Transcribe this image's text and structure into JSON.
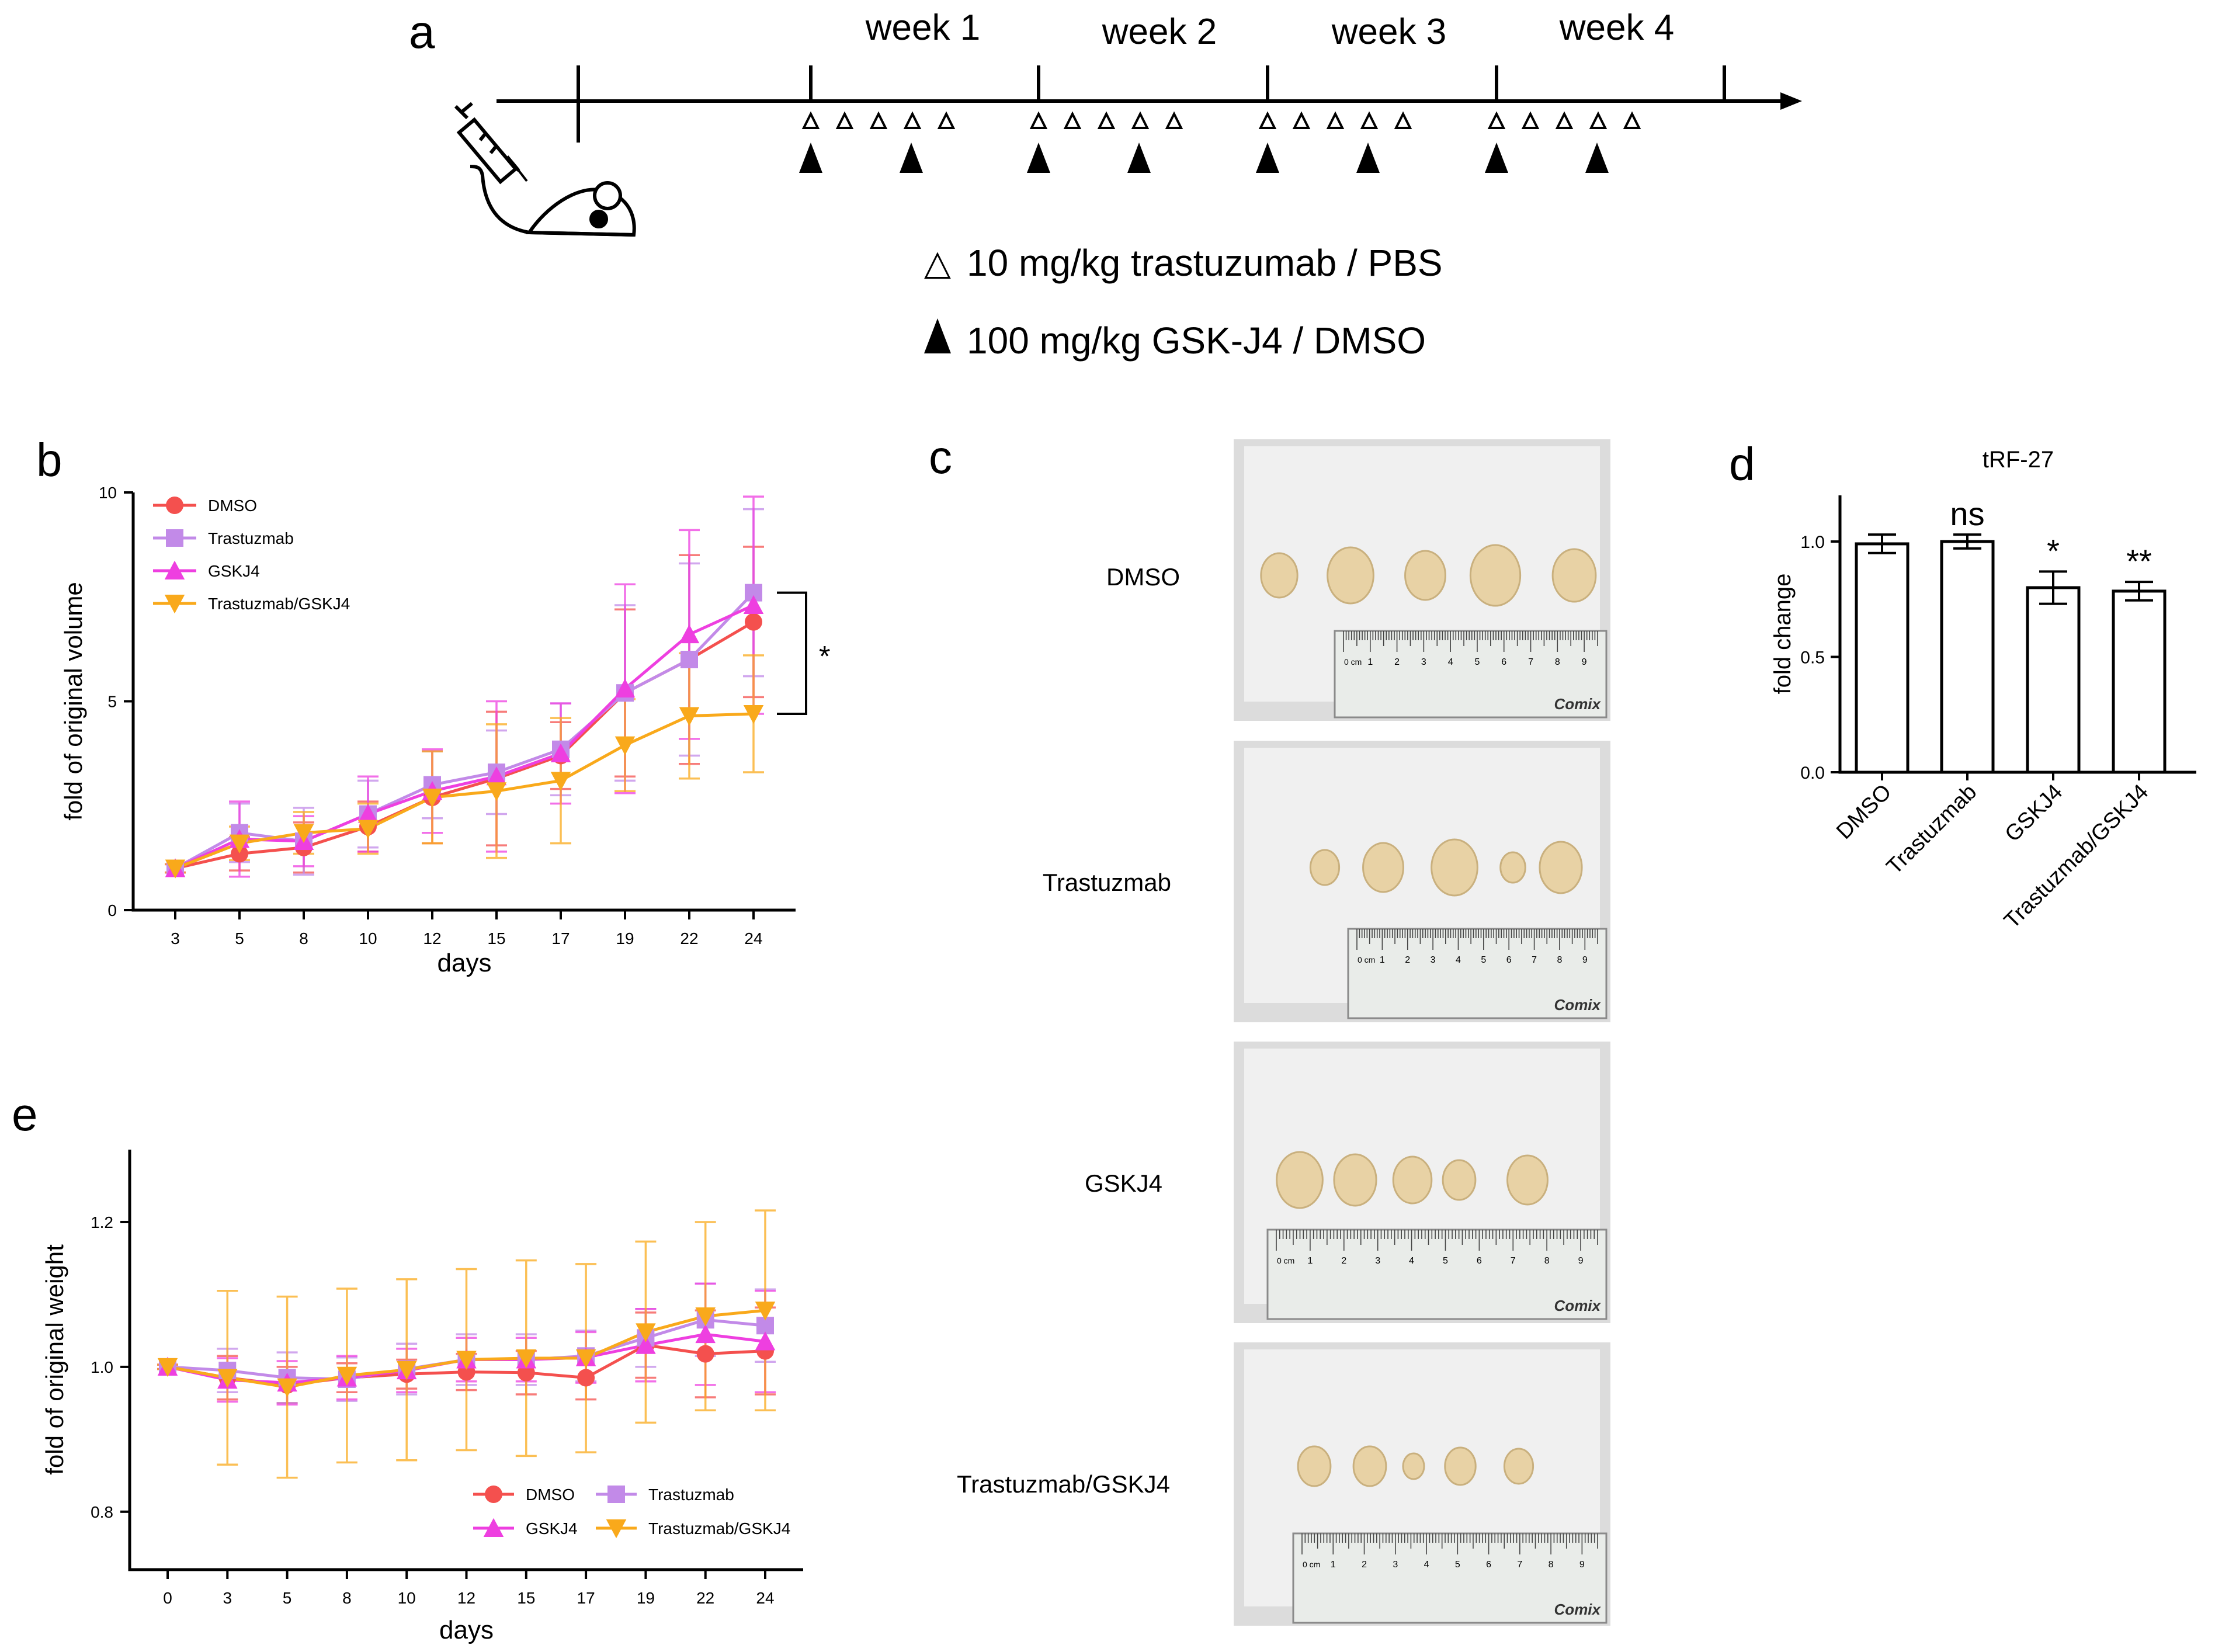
{
  "panel_labels": {
    "a": "a",
    "b": "b",
    "c": "c",
    "d": "d",
    "e": "e"
  },
  "timeline": {
    "weeks": [
      "week 1",
      "week 2",
      "week 3",
      "week 4"
    ],
    "open_marker_label": "10 mg/kg trastuzumab / PBS",
    "filled_marker_label": "100 mg/kg GSK-J4 / DMSO",
    "open_symbol": "△"
  },
  "photos": {
    "groups": [
      "DMSO",
      "Trastuzmab",
      "GSKJ4",
      "Trastuzmab/GSKJ4"
    ],
    "ruler_brand": "Comix",
    "ruler_unit": "0 cm",
    "ruler_numbers": [
      "1",
      "2",
      "3",
      "4",
      "5",
      "6",
      "7",
      "8",
      "9"
    ]
  },
  "colors": {
    "DMSO": "#f4504e",
    "Trastuzmab": "#c28ae8",
    "GSKJ4": "#ee3fe0",
    "Trastuzmab/GSKJ4": "#f9a91b"
  },
  "chart_data": [
    {
      "id": "b",
      "type": "line",
      "xlabel": "days",
      "ylabel": "fold of original volume",
      "categories": [
        "3",
        "5",
        "8",
        "10",
        "12",
        "15",
        "17",
        "19",
        "22",
        "24"
      ],
      "ylim": [
        0,
        10
      ],
      "yticks": [
        "0",
        "5",
        "10"
      ],
      "significance": "*",
      "legend_position": "top-left",
      "series": [
        {
          "name": "DMSO",
          "marker": "circle",
          "values": [
            1.0,
            1.35,
            1.5,
            2.0,
            2.7,
            3.15,
            3.7,
            5.2,
            6.0,
            6.9
          ],
          "errors": [
            0.1,
            0.4,
            0.6,
            0.6,
            1.1,
            1.6,
            0.8,
            2.0,
            2.5,
            1.8
          ]
        },
        {
          "name": "Trastuzmab",
          "marker": "square",
          "values": [
            1.0,
            1.85,
            1.65,
            2.3,
            3.0,
            3.3,
            3.85,
            5.2,
            6.0,
            7.6
          ],
          "errors": [
            0.1,
            0.7,
            0.8,
            0.8,
            0.8,
            1.0,
            1.1,
            2.1,
            2.3,
            2.0
          ]
        },
        {
          "name": "GSKJ4",
          "marker": "triangle",
          "values": [
            1.0,
            1.7,
            1.65,
            2.3,
            2.85,
            3.2,
            3.75,
            5.3,
            6.6,
            7.3
          ],
          "errors": [
            0.1,
            0.9,
            0.6,
            0.9,
            1.0,
            1.8,
            1.2,
            2.5,
            2.5,
            2.6
          ]
        },
        {
          "name": "Trastuzmab/GSKJ4",
          "marker": "triangle-down",
          "values": [
            1.0,
            1.6,
            1.85,
            1.95,
            2.7,
            2.85,
            3.1,
            3.95,
            4.65,
            4.7
          ],
          "errors": [
            0.1,
            0.4,
            0.5,
            0.6,
            1.1,
            1.6,
            1.5,
            1.1,
            1.5,
            1.4
          ]
        }
      ]
    },
    {
      "id": "d",
      "type": "bar",
      "title": "tRF-27",
      "ylabel": "fold change",
      "categories": [
        "DMSO",
        "Trastuzmab",
        "GSKJ4",
        "Trastuzmab/GSKJ4"
      ],
      "values": [
        0.99,
        1.0,
        0.8,
        0.785
      ],
      "errors": [
        0.04,
        0.03,
        0.07,
        0.04
      ],
      "ylim": [
        0,
        1.2
      ],
      "yticks": [
        "0.0",
        "0.5",
        "1.0"
      ],
      "significance": [
        "",
        "ns",
        "*",
        "**"
      ]
    },
    {
      "id": "e",
      "type": "line",
      "xlabel": "days",
      "ylabel": "fold of original weight",
      "categories": [
        "0",
        "3",
        "5",
        "8",
        "10",
        "12",
        "15",
        "17",
        "19",
        "22",
        "24"
      ],
      "ylim": [
        0.72,
        1.3
      ],
      "yticks": [
        "0.8",
        "1.0",
        "1.2"
      ],
      "legend_position": "bottom-right",
      "series": [
        {
          "name": "DMSO",
          "marker": "circle",
          "values": [
            1.0,
            0.985,
            0.975,
            0.985,
            0.99,
            0.993,
            0.992,
            0.985,
            1.03,
            1.018,
            1.022
          ],
          "errors": [
            0.003,
            0.03,
            0.025,
            0.02,
            0.02,
            0.025,
            0.03,
            0.03,
            0.045,
            0.06,
            0.06
          ]
        },
        {
          "name": "Trastuzmab",
          "marker": "square",
          "values": [
            1.0,
            0.995,
            0.985,
            0.983,
            0.997,
            1.01,
            1.01,
            1.015,
            1.04,
            1.065,
            1.057
          ],
          "errors": [
            0.003,
            0.03,
            0.035,
            0.03,
            0.035,
            0.035,
            0.035,
            0.035,
            0.04,
            0.05,
            0.05
          ]
        },
        {
          "name": "GSKJ4",
          "marker": "triangle",
          "values": [
            1.0,
            0.982,
            0.978,
            0.985,
            0.995,
            1.01,
            1.01,
            1.013,
            1.03,
            1.045,
            1.035
          ],
          "errors": [
            0.003,
            0.03,
            0.03,
            0.03,
            0.03,
            0.03,
            0.03,
            0.035,
            0.05,
            0.07,
            0.07
          ]
        },
        {
          "name": "Trastuzmab/GSKJ4",
          "marker": "triangle-down",
          "values": [
            1.0,
            0.985,
            0.972,
            0.988,
            0.996,
            1.01,
            1.012,
            1.012,
            1.048,
            1.07,
            1.078
          ],
          "errors": [
            0.003,
            0.12,
            0.125,
            0.12,
            0.125,
            0.125,
            0.135,
            0.13,
            0.125,
            0.13,
            0.138
          ]
        }
      ]
    }
  ]
}
